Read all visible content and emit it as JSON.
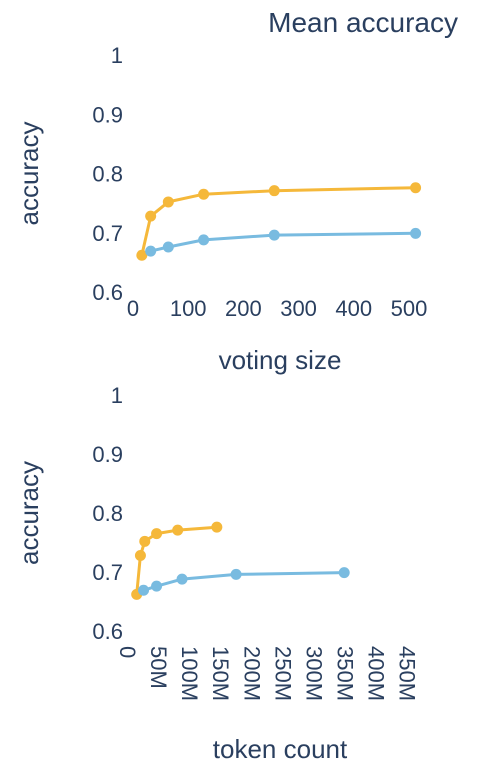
{
  "chart_data": [
    {
      "type": "line",
      "title": "Mean accuracy",
      "xlabel": "voting size",
      "ylabel": "accuracy",
      "xlim": [
        0,
        520
      ],
      "ylim": [
        0.6,
        1.0
      ],
      "xticks": [
        0,
        100,
        200,
        300,
        400,
        500
      ],
      "xtick_labels": [
        "0",
        "100",
        "200",
        "300",
        "400",
        "500"
      ],
      "yticks": [
        0.6,
        0.7,
        0.8,
        0.9,
        1.0
      ],
      "ytick_labels": [
        "0.6",
        "0.7",
        "0.8",
        "0.9",
        "1"
      ],
      "grid": false,
      "series": [
        {
          "color": "#f5b83a",
          "x": [
            16,
            32,
            64,
            128,
            256,
            512
          ],
          "y": [
            0.662,
            0.728,
            0.752,
            0.765,
            0.771,
            0.776
          ]
        },
        {
          "color": "#79bbe0",
          "x": [
            32,
            64,
            128,
            256,
            512
          ],
          "y": [
            0.669,
            0.676,
            0.688,
            0.696,
            0.699
          ]
        }
      ]
    },
    {
      "type": "line",
      "title": "",
      "xlabel": "token count",
      "ylabel": "accuracy",
      "xlim": [
        0,
        470000000
      ],
      "ylim": [
        0.6,
        1.0
      ],
      "xticks": [
        0,
        50000000,
        100000000,
        150000000,
        200000000,
        250000000,
        300000000,
        350000000,
        400000000,
        450000000
      ],
      "xtick_labels": [
        "0",
        "50M",
        "100M",
        "150M",
        "200M",
        "250M",
        "300M",
        "350M",
        "400M",
        "450M"
      ],
      "yticks": [
        0.6,
        0.7,
        0.8,
        0.9,
        1.0
      ],
      "ytick_labels": [
        "0.6",
        "0.7",
        "0.8",
        "0.9",
        "1"
      ],
      "grid": false,
      "series": [
        {
          "color": "#f5b83a",
          "x": [
            14000000,
            20000000,
            27000000,
            46000000,
            80000000,
            143000000
          ],
          "y": [
            0.662,
            0.728,
            0.752,
            0.765,
            0.771,
            0.776
          ]
        },
        {
          "color": "#79bbe0",
          "x": [
            25000000,
            46000000,
            87000000,
            174000000,
            348000000
          ],
          "y": [
            0.669,
            0.676,
            0.688,
            0.696,
            0.699
          ]
        }
      ]
    }
  ]
}
